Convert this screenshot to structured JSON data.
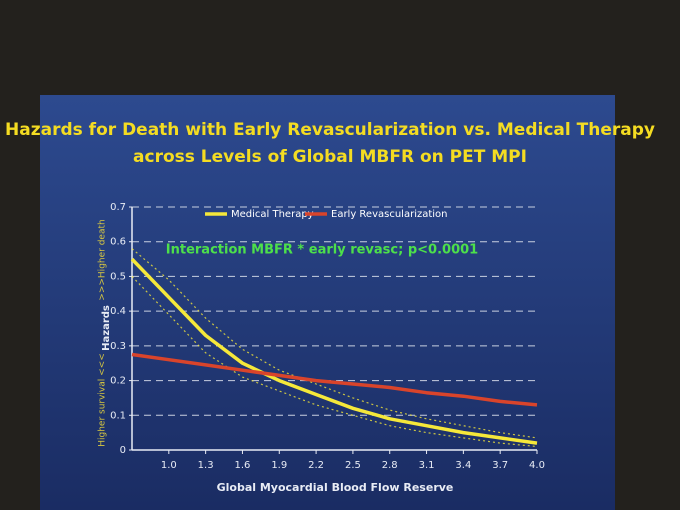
{
  "chart_data": {
    "type": "line",
    "title": "Hazards for Death with Early Revascularization vs. Medical Therapy",
    "subtitle": "across Levels of Global MBFR on PET MPI",
    "annotation": "Interaction MBFR * early revasc; p<0.0001",
    "y_label": "Hazards",
    "y_label_top": ">>>Higher death",
    "y_label_bottom": "Higher survival <<<",
    "x_label": "Global Myocardial Blood Flow Reserve",
    "x": [
      0.7,
      1.0,
      1.3,
      1.6,
      1.9,
      2.2,
      2.5,
      2.8,
      3.1,
      3.4,
      3.7,
      4.0
    ],
    "series": [
      {
        "name": "Medical Therapy",
        "color": "#f5e83a",
        "values": [
          0.55,
          0.44,
          0.33,
          0.25,
          0.2,
          0.16,
          0.12,
          0.09,
          0.07,
          0.05,
          0.035,
          0.02
        ],
        "ci_upper": [
          0.58,
          0.49,
          0.38,
          0.29,
          0.23,
          0.19,
          0.15,
          0.115,
          0.09,
          0.07,
          0.05,
          0.035
        ],
        "ci_lower": [
          0.5,
          0.39,
          0.28,
          0.21,
          0.17,
          0.13,
          0.1,
          0.07,
          0.05,
          0.035,
          0.02,
          0.01
        ]
      },
      {
        "name": "Early Revascularization",
        "color": "#d9442b",
        "values": [
          0.275,
          0.26,
          0.245,
          0.23,
          0.215,
          0.2,
          0.19,
          0.18,
          0.165,
          0.155,
          0.14,
          0.13
        ]
      }
    ],
    "xlim": [
      0.7,
      4.0
    ],
    "xticks": [
      {
        "value": 1,
        "label": "1.0"
      },
      1.3,
      1.6,
      1.9,
      2.2,
      2.5,
      2.8,
      3.1,
      3.4,
      3.7,
      {
        "value": 4,
        "label": "4.0"
      }
    ],
    "ylim": [
      0,
      0.7
    ],
    "yticks": [
      0,
      0.1,
      0.2,
      0.3,
      0.4,
      0.5,
      0.6,
      0.7
    ],
    "grid": true
  }
}
